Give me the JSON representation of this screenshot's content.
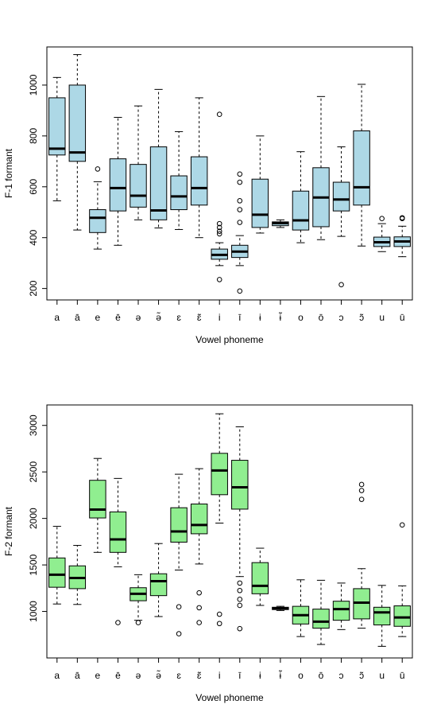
{
  "chart_data": [
    {
      "type": "boxplot",
      "xlabel": "Vowel phoneme",
      "ylabel": "F-1 formant",
      "ylim": [
        155,
        1150
      ],
      "yticks": [
        200,
        400,
        600,
        800,
        1000
      ],
      "fill_color": "#add8e6",
      "categories": [
        "a",
        "ā",
        "e",
        "ē",
        "ə",
        "ə̃",
        "ɛ",
        "ɛ̃",
        "i",
        "ī",
        "ɨ",
        "ɨ̃",
        "o",
        "ō",
        "ɔ",
        "ɔ̃",
        "u",
        "ū"
      ],
      "boxes": [
        {
          "whislo": 545,
          "q1": 725,
          "med": 750,
          "q3": 950,
          "whishi": 1030,
          "fliers": []
        },
        {
          "whislo": 430,
          "q1": 700,
          "med": 735,
          "q3": 1000,
          "whishi": 1120,
          "fliers": []
        },
        {
          "whislo": 355,
          "q1": 420,
          "med": 478,
          "q3": 510,
          "whishi": 620,
          "fliers": [
            670
          ]
        },
        {
          "whislo": 370,
          "q1": 505,
          "med": 595,
          "q3": 710,
          "whishi": 873,
          "fliers": []
        },
        {
          "whislo": 470,
          "q1": 520,
          "med": 565,
          "q3": 688,
          "whishi": 918,
          "fliers": []
        },
        {
          "whislo": 438,
          "q1": 470,
          "med": 507,
          "q3": 757,
          "whishi": 983,
          "fliers": []
        },
        {
          "whislo": 432,
          "q1": 510,
          "med": 562,
          "q3": 643,
          "whishi": 817,
          "fliers": []
        },
        {
          "whislo": 400,
          "q1": 528,
          "med": 595,
          "q3": 718,
          "whishi": 950,
          "fliers": []
        },
        {
          "whislo": 290,
          "q1": 315,
          "med": 332,
          "q3": 355,
          "whishi": 380,
          "fliers": [
            885,
            455,
            440,
            425,
            415,
            235
          ]
        },
        {
          "whislo": 290,
          "q1": 322,
          "med": 345,
          "q3": 370,
          "whishi": 408,
          "fliers": [
            650,
            618,
            545,
            510,
            460,
            190
          ]
        },
        {
          "whislo": 418,
          "q1": 440,
          "med": 490,
          "q3": 630,
          "whishi": 800,
          "fliers": []
        },
        {
          "whislo": 440,
          "q1": 447,
          "med": 457,
          "q3": 462,
          "whishi": 470,
          "fliers": []
        },
        {
          "whislo": 380,
          "q1": 430,
          "med": 468,
          "q3": 583,
          "whishi": 738,
          "fliers": []
        },
        {
          "whislo": 392,
          "q1": 443,
          "med": 558,
          "q3": 675,
          "whishi": 955,
          "fliers": []
        },
        {
          "whislo": 405,
          "q1": 505,
          "med": 550,
          "q3": 618,
          "whishi": 757,
          "fliers": [
            215
          ]
        },
        {
          "whislo": 367,
          "q1": 528,
          "med": 598,
          "q3": 820,
          "whishi": 1003,
          "fliers": []
        },
        {
          "whislo": 345,
          "q1": 365,
          "med": 382,
          "q3": 402,
          "whishi": 455,
          "fliers": [
            475
          ]
        },
        {
          "whislo": 325,
          "q1": 365,
          "med": 385,
          "q3": 403,
          "whishi": 445,
          "fliers": [
            478,
            475
          ]
        }
      ]
    },
    {
      "type": "boxplot",
      "xlabel": "Vowel phoneme",
      "ylabel": "F-2 formant",
      "ylim": [
        500,
        3220
      ],
      "yticks": [
        1000,
        1500,
        2000,
        2500,
        3000
      ],
      "fill_color": "#90ee90",
      "categories": [
        "a",
        "ā",
        "e",
        "ē",
        "ə",
        "ə̃",
        "ɛ",
        "ɛ̃",
        "i",
        "ī",
        "ɨ",
        "ɨ̃",
        "o",
        "ō",
        "ɔ",
        "ɔ̃",
        "u",
        "ū"
      ],
      "boxes": [
        {
          "whislo": 1080,
          "q1": 1260,
          "med": 1395,
          "q3": 1575,
          "whishi": 1915,
          "fliers": []
        },
        {
          "whislo": 1075,
          "q1": 1245,
          "med": 1360,
          "q3": 1490,
          "whishi": 1710,
          "fliers": []
        },
        {
          "whislo": 1635,
          "q1": 2005,
          "med": 2095,
          "q3": 2410,
          "whishi": 2645,
          "fliers": []
        },
        {
          "whislo": 1480,
          "q1": 1635,
          "med": 1775,
          "q3": 2070,
          "whishi": 2430,
          "fliers": [
            880
          ]
        },
        {
          "whislo": 905,
          "q1": 1115,
          "med": 1190,
          "q3": 1255,
          "whishi": 1395,
          "fliers": [
            880
          ]
        },
        {
          "whislo": 945,
          "q1": 1170,
          "med": 1325,
          "q3": 1405,
          "whishi": 1730,
          "fliers": []
        },
        {
          "whislo": 1445,
          "q1": 1745,
          "med": 1860,
          "q3": 2115,
          "whishi": 2475,
          "fliers": [
            1050,
            760
          ]
        },
        {
          "whislo": 1510,
          "q1": 1835,
          "med": 1930,
          "q3": 2155,
          "whishi": 2535,
          "fliers": [
            1200,
            1040,
            880
          ]
        },
        {
          "whislo": 1950,
          "q1": 2255,
          "med": 2515,
          "q3": 2700,
          "whishi": 3125,
          "fliers": [
            970,
            870
          ]
        },
        {
          "whislo": 1375,
          "q1": 2100,
          "med": 2335,
          "q3": 2625,
          "whishi": 2985,
          "fliers": [
            1305,
            1225,
            1130,
            1065,
            815
          ]
        },
        {
          "whislo": 1065,
          "q1": 1190,
          "med": 1275,
          "q3": 1525,
          "whishi": 1680,
          "fliers": []
        },
        {
          "whislo": 1010,
          "q1": 1020,
          "med": 1030,
          "q3": 1045,
          "whishi": 1055,
          "fliers": []
        },
        {
          "whislo": 730,
          "q1": 865,
          "med": 960,
          "q3": 1055,
          "whishi": 1340,
          "fliers": []
        },
        {
          "whislo": 645,
          "q1": 820,
          "med": 890,
          "q3": 1025,
          "whishi": 1335,
          "fliers": []
        },
        {
          "whislo": 805,
          "q1": 905,
          "med": 1025,
          "q3": 1110,
          "whishi": 1305,
          "fliers": []
        },
        {
          "whislo": 820,
          "q1": 920,
          "med": 1095,
          "q3": 1245,
          "whishi": 1460,
          "fliers": [
            2365,
            2300,
            2205
          ]
        },
        {
          "whislo": 625,
          "q1": 855,
          "med": 990,
          "q3": 1045,
          "whishi": 1280,
          "fliers": []
        },
        {
          "whislo": 730,
          "q1": 840,
          "med": 935,
          "q3": 1060,
          "whishi": 1275,
          "fliers": [
            1930
          ]
        }
      ]
    }
  ]
}
